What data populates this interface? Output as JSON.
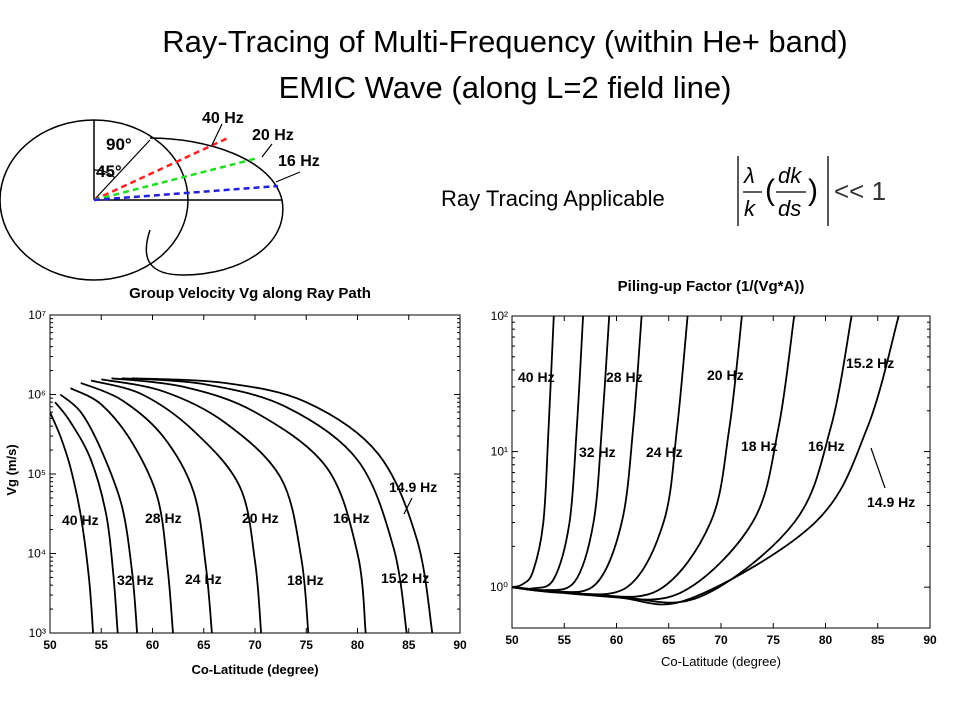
{
  "header": {
    "title_line1": "Ray-Tracing of Multi-Frequency (within He+ band)",
    "title_line2": "EMIC Wave (along L=2 field line)"
  },
  "inset": {
    "angle_labels": [
      "90°",
      "45°"
    ],
    "freq_labels": [
      "40 Hz",
      "20 Hz",
      "16 Hz"
    ]
  },
  "ray_tracing": {
    "label": "Ray Tracing Applicable",
    "condition_rhs": "<< 1"
  },
  "colors": {
    "red_ray": "#ff2020",
    "green_ray": "#20dd20",
    "blue_ray": "#2020dd",
    "curve": "#000000"
  },
  "chart_data": [
    {
      "type": "line",
      "title": "Group Velocity Vg along Ray Path",
      "xlabel": "Co-Latitude (degree)",
      "ylabel": "Vg (m/s)",
      "xlim": [
        50,
        90
      ],
      "ylim": [
        1000,
        10000000
      ],
      "yscale": "log",
      "x_ticks": [
        "50",
        "55",
        "60",
        "65",
        "70",
        "75",
        "80",
        "85",
        "90"
      ],
      "y_ticks": [
        "10³",
        "10⁴",
        "10⁵",
        "10⁶",
        "10⁷"
      ],
      "annotations": [
        "40 Hz",
        "28 Hz",
        "20 Hz",
        "16 Hz",
        "32 Hz",
        "24 Hz",
        "18 Hz",
        "15.2 Hz",
        "14.9 Hz"
      ],
      "series": [
        {
          "name": "40 Hz",
          "x": [
            50,
            51,
            52,
            53,
            53.8,
            54.2
          ],
          "y": [
            600000,
            300000,
            120000,
            30000,
            5000,
            1000
          ]
        },
        {
          "name": "32 Hz",
          "x": [
            50.5,
            52,
            54,
            55.5,
            56.2,
            56.6
          ],
          "y": [
            800000,
            450000,
            150000,
            30000,
            5000,
            1000
          ]
        },
        {
          "name": "28 Hz",
          "x": [
            51,
            53,
            55,
            57,
            58,
            58.5
          ],
          "y": [
            1000000,
            600000,
            200000,
            40000,
            6000,
            1000
          ]
        },
        {
          "name": "24 Hz",
          "x": [
            52,
            55,
            58,
            60.5,
            61.5,
            62
          ],
          "y": [
            1200000,
            750000,
            250000,
            50000,
            6000,
            1000
          ]
        },
        {
          "name": "20 Hz",
          "x": [
            53,
            57,
            61,
            64,
            65.2,
            65.8
          ],
          "y": [
            1400000,
            850000,
            300000,
            60000,
            7000,
            1000
          ]
        },
        {
          "name": "18 Hz",
          "x": [
            54,
            59,
            64,
            68.5,
            70,
            70.6
          ],
          "y": [
            1500000,
            1000000,
            350000,
            70000,
            8000,
            1000
          ]
        },
        {
          "name": "16 Hz",
          "x": [
            55,
            61,
            67,
            72.5,
            74.5,
            75.2
          ],
          "y": [
            1550000,
            1100000,
            450000,
            90000,
            9000,
            1000
          ]
        },
        {
          "name": "15.2 Hz",
          "x": [
            56,
            63,
            70,
            77,
            80,
            80.8
          ],
          "y": [
            1600000,
            1250000,
            600000,
            120000,
            10000,
            1000
          ]
        },
        {
          "name": "14.9 Hz",
          "x": [
            57,
            65,
            73,
            80,
            83.5,
            84.8
          ],
          "y": [
            1600000,
            1350000,
            700000,
            150000,
            12000,
            1000
          ]
        },
        {
          "name": "14.9 Hz (b)",
          "x": [
            58,
            67,
            75,
            82,
            85.8,
            87.3
          ],
          "y": [
            1600000,
            1400000,
            800000,
            180000,
            15000,
            1000
          ]
        }
      ]
    },
    {
      "type": "line",
      "title": "Piling-up Factor (1/(Vg*A))",
      "xlabel": "Co-Latitude (degree)",
      "ylabel": "",
      "xlim": [
        50,
        90
      ],
      "ylim": [
        0.5,
        100
      ],
      "yscale": "log",
      "x_ticks": [
        "50",
        "55",
        "60",
        "65",
        "70",
        "75",
        "80",
        "85",
        "90"
      ],
      "y_ticks": [
        "10⁰",
        "10¹",
        "10²"
      ],
      "annotations": [
        "40 Hz",
        "28 Hz",
        "20 Hz",
        "15.2 Hz",
        "32 Hz",
        "24 Hz",
        "18 Hz",
        "16 Hz",
        "14.9 Hz"
      ],
      "series": [
        {
          "name": "40 Hz",
          "x": [
            50,
            51,
            52,
            53,
            53.5,
            54
          ],
          "y": [
            1.0,
            1.05,
            1.3,
            3,
            15,
            100
          ]
        },
        {
          "name": "32 Hz",
          "x": [
            50,
            52,
            54,
            55.5,
            56.2,
            56.8
          ],
          "y": [
            1.0,
            0.98,
            1.15,
            3,
            15,
            100
          ]
        },
        {
          "name": "28 Hz",
          "x": [
            50,
            53,
            56,
            57.8,
            58.6,
            59.3
          ],
          "y": [
            1.0,
            0.95,
            1.1,
            3,
            15,
            100
          ]
        },
        {
          "name": "24 Hz",
          "x": [
            50,
            54,
            58,
            60.5,
            61.6,
            62.4
          ],
          "y": [
            1.0,
            0.93,
            1.05,
            3,
            15,
            100
          ]
        },
        {
          "name": "20 Hz",
          "x": [
            50,
            55,
            61,
            64.5,
            65.8,
            66.8
          ],
          "y": [
            1.0,
            0.91,
            1.0,
            3,
            15,
            100
          ]
        },
        {
          "name": "18 Hz",
          "x": [
            50,
            57,
            64,
            69,
            70.8,
            72
          ],
          "y": [
            1.0,
            0.89,
            0.95,
            3,
            15,
            100
          ]
        },
        {
          "name": "16 Hz",
          "x": [
            50,
            58,
            66,
            73,
            75.5,
            77
          ],
          "y": [
            1.0,
            0.87,
            0.9,
            3,
            15,
            100
          ]
        },
        {
          "name": "15.2 Hz",
          "x": [
            50,
            60,
            68,
            77,
            80.5,
            82.5
          ],
          "y": [
            1.0,
            0.85,
            0.85,
            3,
            15,
            100
          ]
        },
        {
          "name": "14.9 Hz",
          "x": [
            50,
            60,
            67,
            79,
            84,
            87
          ],
          "y": [
            1.0,
            0.84,
            0.82,
            3,
            15,
            100
          ]
        }
      ]
    }
  ]
}
